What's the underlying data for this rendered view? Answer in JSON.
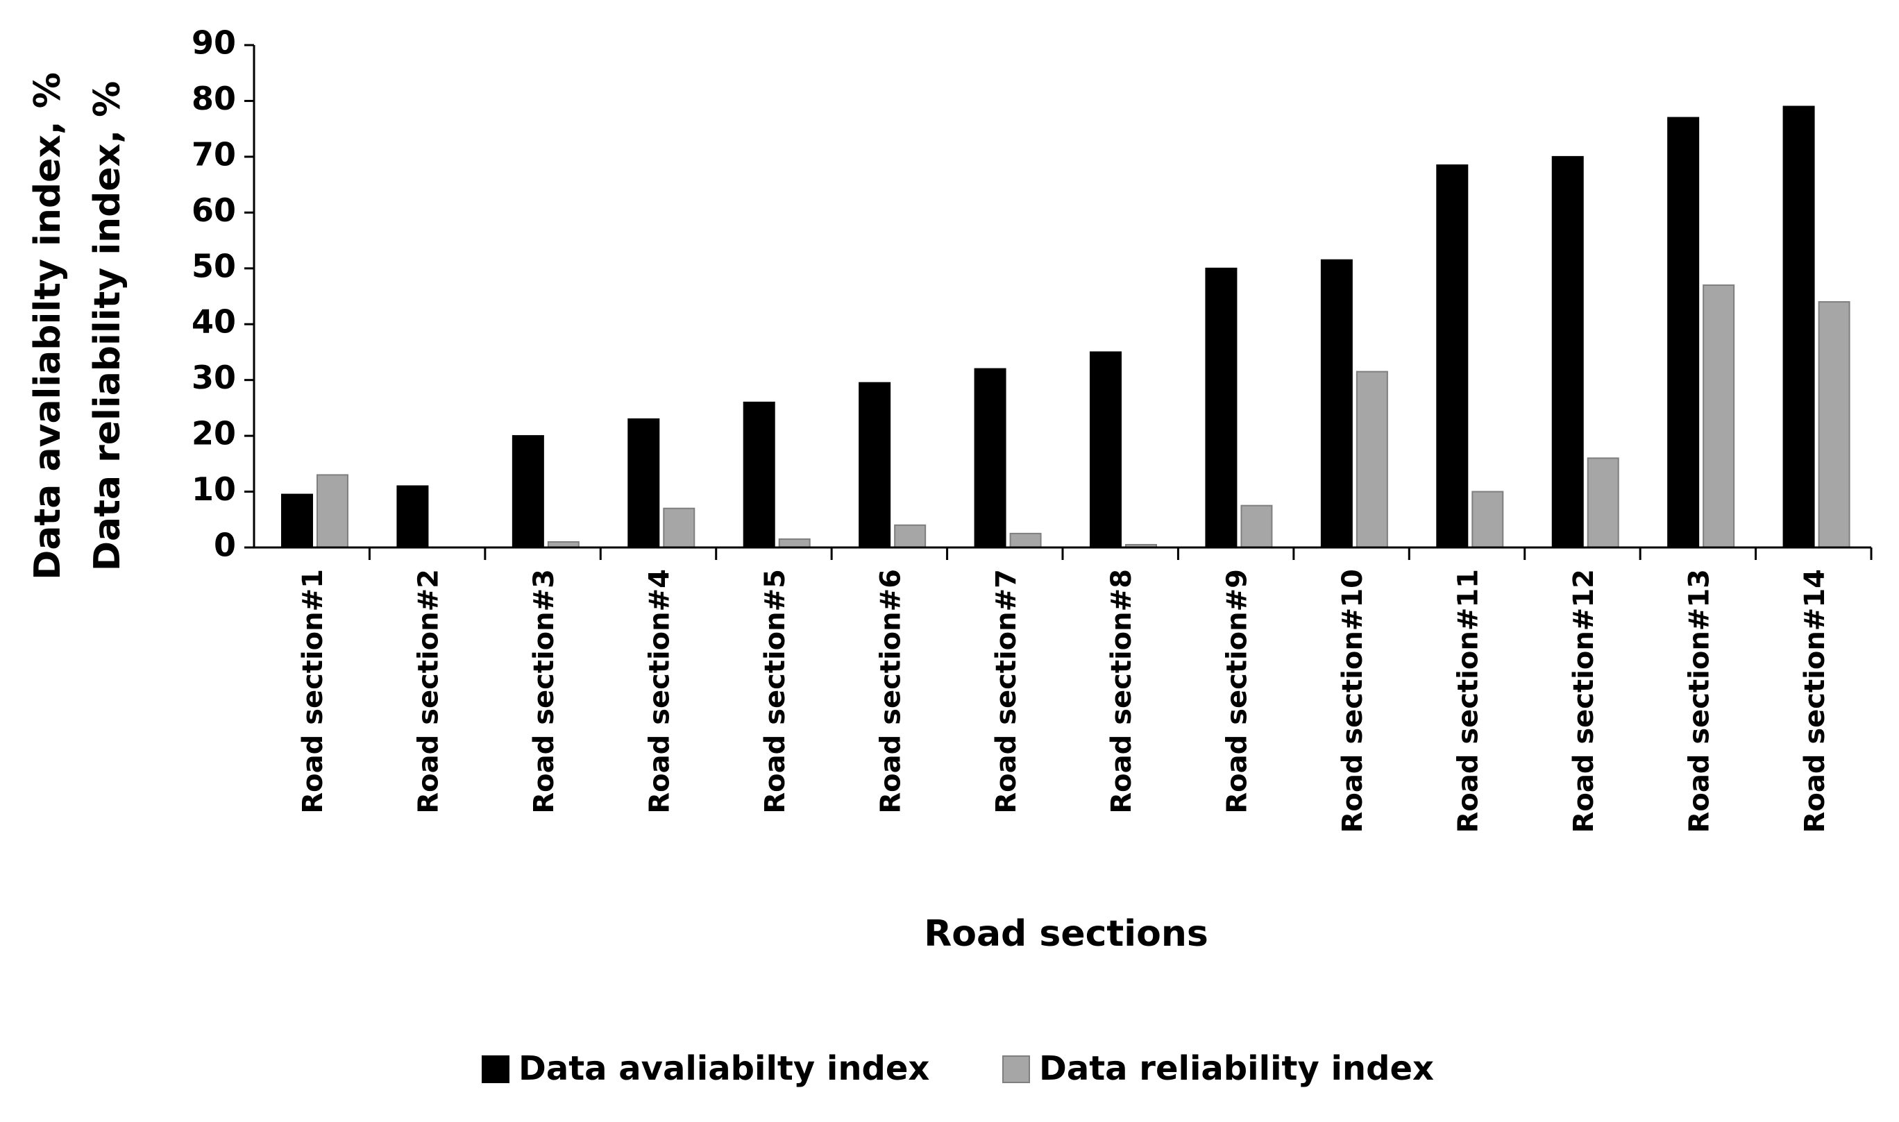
{
  "chart_data": {
    "type": "bar",
    "y_label": [
      "Data avaliabilty index, %",
      "Data reliability index, %"
    ],
    "x_label": "Road sections",
    "categories": [
      "Road section#1",
      "Road section#2",
      "Road section#3",
      "Road section#4",
      "Road section#5",
      "Road section#6",
      "Road section#7",
      "Road section#8",
      "Road section#9",
      "Road section#10",
      "Road section#11",
      "Road section#12",
      "Road section#13",
      "Road section#14"
    ],
    "series": [
      {
        "name": "Data avaliabilty index",
        "color": "#000000",
        "values": [
          9.5,
          11,
          20,
          23,
          26,
          29.5,
          32,
          35,
          50,
          51.5,
          68.5,
          70,
          77,
          79
        ]
      },
      {
        "name": "Data reliability index",
        "color": "#a6a6a6",
        "values": [
          13,
          0,
          1,
          7,
          1.5,
          4,
          2.5,
          0.5,
          7.5,
          31.5,
          10,
          16,
          47,
          44
        ]
      }
    ],
    "ylim": [
      0,
      90
    ],
    "yticks": [
      0,
      10,
      20,
      30,
      40,
      50,
      60,
      70,
      80,
      90
    ],
    "legend": "bottom"
  }
}
